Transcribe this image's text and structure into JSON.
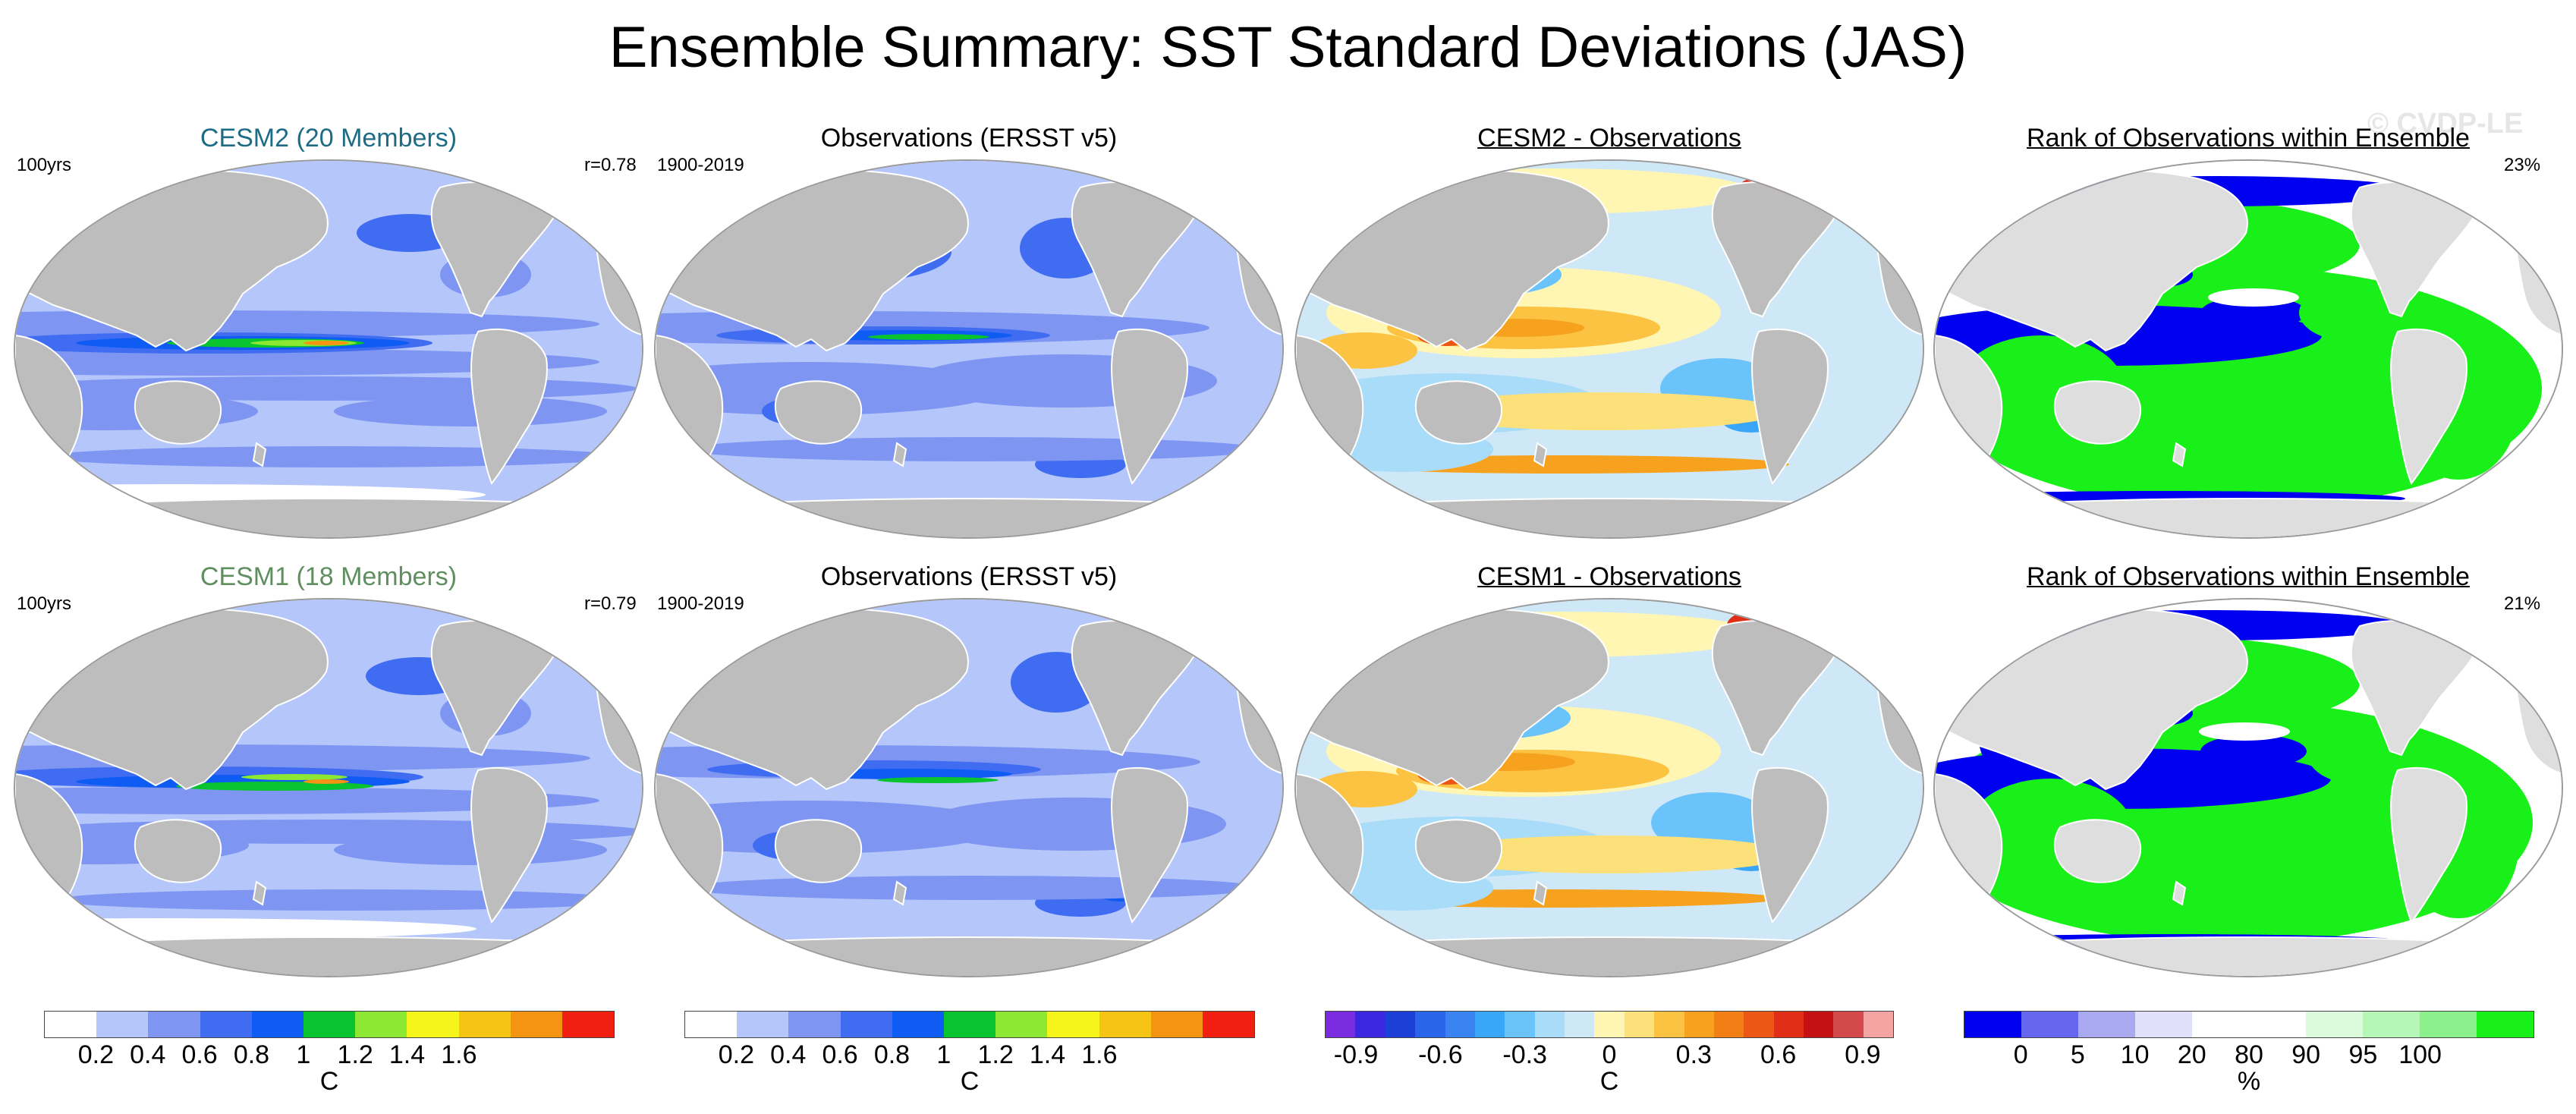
{
  "title": "Ensemble Summary: SST Standard Deviations (JAS)",
  "watermark": "© CVDP-LE",
  "colors": {
    "land": "#bdbdbd",
    "ocean_base": "#b4c6fa",
    "cesm2_title": "#1e6b86",
    "cesm1_title": "#5f8e5f",
    "stddev_scale": [
      "#ffffff",
      "#b4c6fa",
      "#7e96f2",
      "#3f6cf0",
      "#0f5cf5",
      "#09c32f",
      "#8de833",
      "#f5f51c",
      "#f5c415",
      "#f59313",
      "#f01f12"
    ],
    "diff_scale": [
      "#7b2be0",
      "#3b27e0",
      "#1c3fd8",
      "#2a64e8",
      "#3a84f2",
      "#39a6f7",
      "#6bc3fb",
      "#a9dcf8",
      "#cfe8f7",
      "#fff6b3",
      "#fce07a",
      "#fbc341",
      "#f7a21e",
      "#f27f16",
      "#ec5715",
      "#e12f17",
      "#c41111",
      "#d44a4a",
      "#f5a4a4"
    ],
    "rank_scale": [
      "#0000f0",
      "#6565ee",
      "#a9a9ef",
      "#e0e0fa",
      "#ffffff",
      "#ffffff",
      "#dcfadc",
      "#b6f6b6",
      "#8cf08c",
      "#19f019"
    ]
  },
  "panels": [
    {
      "title": "CESM2 (20 Members)",
      "note_left": "100yrs",
      "note_right": "r=0.78",
      "kind": "model"
    },
    {
      "title": "Observations (ERSST v5)",
      "note_left": "1900-2019",
      "note_right": "",
      "kind": "obs"
    },
    {
      "title": "CESM2 - Observations",
      "note_left": "",
      "note_right": "",
      "kind": "diff"
    },
    {
      "title": "Rank of Observations within Ensemble",
      "note_left": "",
      "note_right": "23%",
      "kind": "rank"
    },
    {
      "title": "CESM1 (18 Members)",
      "note_left": "100yrs",
      "note_right": "r=0.79",
      "kind": "model"
    },
    {
      "title": "Observations (ERSST v5)",
      "note_left": "1900-2019",
      "note_right": "",
      "kind": "obs"
    },
    {
      "title": "CESM1 - Observations",
      "note_left": "",
      "note_right": "",
      "kind": "diff"
    },
    {
      "title": "Rank of Observations within Ensemble",
      "note_left": "",
      "note_right": "21%",
      "kind": "rank"
    }
  ],
  "chart_data": [
    {
      "type": "heatmap",
      "name": "stddev-colorbar-1",
      "levels": [
        0.2,
        0.4,
        0.6,
        0.8,
        1,
        1.2,
        1.4,
        1.6
      ],
      "tick_labels": [
        "0.2",
        "0.4",
        "0.6",
        "0.8",
        "1",
        "1.2",
        "1.4",
        "1.6"
      ],
      "units": "C"
    },
    {
      "type": "heatmap",
      "name": "stddev-colorbar-2",
      "levels": [
        0.2,
        0.4,
        0.6,
        0.8,
        1,
        1.2,
        1.4,
        1.6
      ],
      "tick_labels": [
        "0.2",
        "0.4",
        "0.6",
        "0.8",
        "1",
        "1.2",
        "1.4",
        "1.6"
      ],
      "units": "C"
    },
    {
      "type": "heatmap",
      "name": "difference-colorbar",
      "levels": [
        -0.9,
        -0.6,
        -0.3,
        0,
        0.3,
        0.6,
        0.9
      ],
      "tick_labels": [
        "-0.9",
        "-0.6",
        "-0.3",
        "0",
        "0.3",
        "0.6",
        "0.9"
      ],
      "units": "C"
    },
    {
      "type": "heatmap",
      "name": "rank-colorbar",
      "levels": [
        0,
        5,
        10,
        20,
        80,
        90,
        95,
        100
      ],
      "tick_labels": [
        "0",
        "5",
        "10",
        "20",
        "80",
        "90",
        "95",
        "100"
      ],
      "units": "%"
    }
  ]
}
